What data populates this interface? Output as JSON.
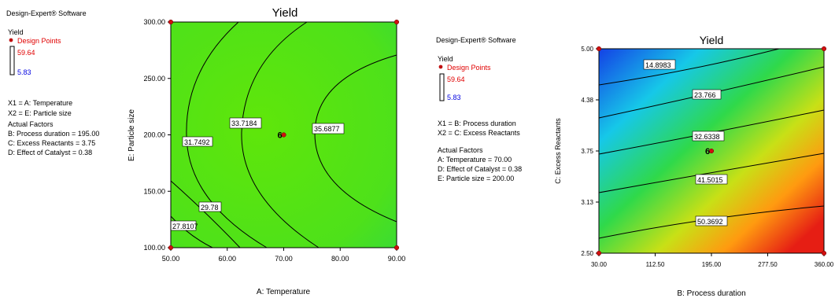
{
  "chart_data": [
    {
      "type": "contour",
      "title": "Yield",
      "xlabel": "A: Temperature",
      "ylabel": "E: Particle size",
      "xlim": [
        50,
        90
      ],
      "ylim": [
        100,
        300
      ],
      "xticks": [
        "50.00",
        "60.00",
        "70.00",
        "80.00",
        "90.00"
      ],
      "yticks": [
        "100.00",
        "150.00",
        "200.00",
        "250.00",
        "300.00"
      ],
      "colors": {
        "low": "#1fd35a",
        "high": "#5fe60a"
      },
      "contour_levels": [
        "27.8107",
        "29.78",
        "31.7492",
        "33.7184",
        "35.6877"
      ],
      "design_points": [
        {
          "x": 50,
          "y": 100
        },
        {
          "x": 90,
          "y": 100
        },
        {
          "x": 50,
          "y": 300
        },
        {
          "x": 90,
          "y": 300
        },
        {
          "x": 70,
          "y": 200,
          "label": "6"
        }
      ],
      "software": "Design-Expert® Software",
      "legend": {
        "response": "Yield",
        "points_label": "Design Points",
        "high": "59.64",
        "low": "5.83",
        "x1": "X1 = A: Temperature",
        "x2": "X2 = E: Particle size",
        "actual_factors_title": "Actual Factors",
        "actual_factors": [
          "B: Process duration = 195.00",
          "C: Excess Reactants = 3.75",
          "D: Effect of Catalyst = 0.38"
        ]
      }
    },
    {
      "type": "contour",
      "title": "Yield",
      "xlabel": "B:  Process duration",
      "ylabel": "C: Excess Reactants",
      "xlim": [
        30,
        360
      ],
      "ylim": [
        2.5,
        5.0
      ],
      "xticks": [
        "30.00",
        "112.50",
        "195.00",
        "277.50",
        "360.00"
      ],
      "yticks": [
        "2.50",
        "3.13",
        "3.75",
        "4.38",
        "5.00"
      ],
      "colors": {
        "low": "#e61e14",
        "mid": "#2fd94a",
        "high": "#1040e0"
      },
      "contour_levels": [
        "14.8983",
        "23.766",
        "32.6338",
        "41.5015",
        "50.3692"
      ],
      "design_points": [
        {
          "x": 30,
          "y": 2.5
        },
        {
          "x": 360,
          "y": 2.5
        },
        {
          "x": 30,
          "y": 5.0
        },
        {
          "x": 360,
          "y": 5.0
        },
        {
          "x": 195,
          "y": 3.75,
          "label": "6"
        }
      ],
      "software": "Design-Expert® Software",
      "legend": {
        "response": "Yield",
        "points_label": "Design Points",
        "high": "59.64",
        "low": "5.83",
        "x1": "X1 = B: Process duration",
        "x2": "X2 = C: Excess Reactants",
        "actual_factors_title": "Actual Factors",
        "actual_factors": [
          "A: Temperature = 70.00",
          "D: Effect of Catalyst = 0.38",
          "E: Particle size = 200.00"
        ]
      }
    }
  ]
}
